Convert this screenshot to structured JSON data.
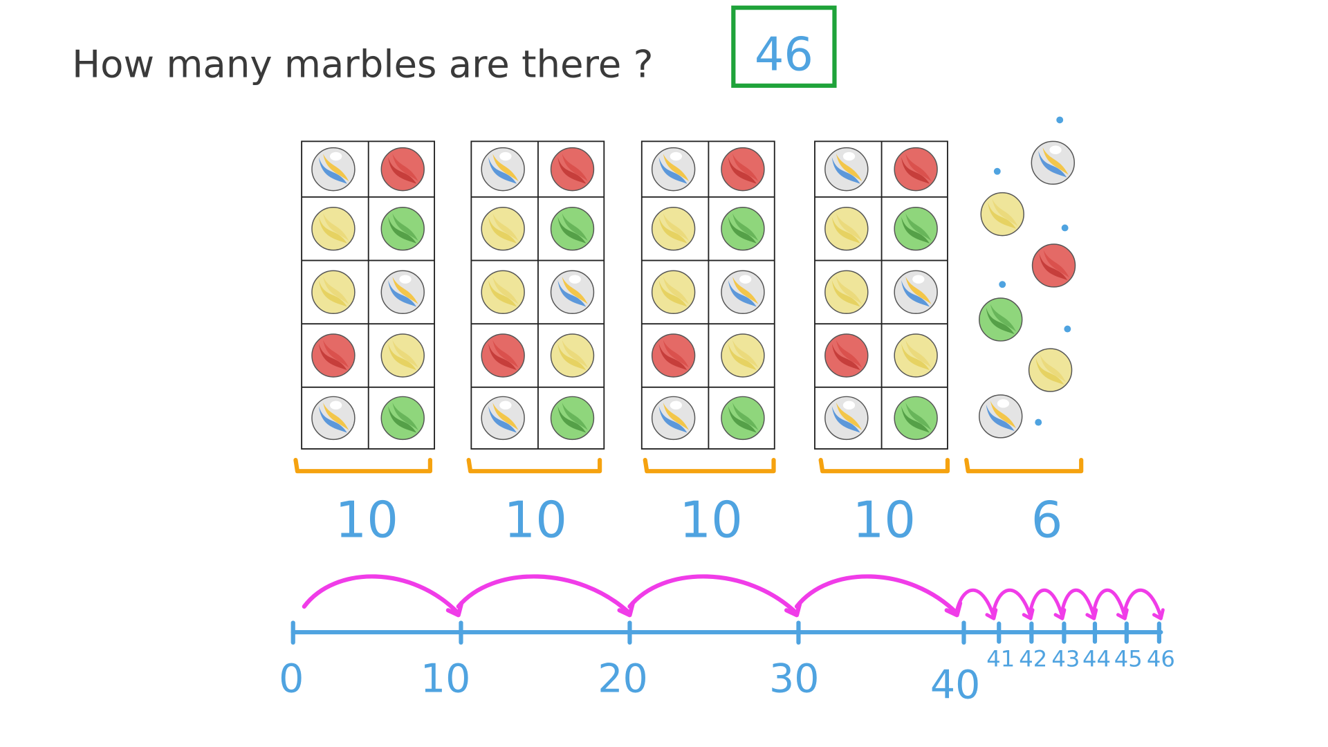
{
  "question": {
    "text": "How many marbles are there ?",
    "answer": "46"
  },
  "colors": {
    "title": "#3a3a3a",
    "answer_box": "#1fa33a",
    "blue": "#4fa3e0",
    "orange": "#f5a20f",
    "magenta": "#f03ce8",
    "grid": "#222222",
    "marbles": {
      "white": {
        "fill": "#e4e4e4",
        "swirl1": "#4d8fd8",
        "swirl2": "#f3c441"
      },
      "red": {
        "fill": "#e46a66",
        "swirl1": "#c23a36",
        "swirl2": "#d9504c"
      },
      "yellow": {
        "fill": "#efe59a",
        "swirl1": "#e4cf5c",
        "swirl2": "#ead97a"
      },
      "green": {
        "fill": "#8fd67c",
        "swirl1": "#4f9a43",
        "swirl2": "#66b358"
      }
    }
  },
  "ten_frame_pattern": [
    [
      "white",
      "red"
    ],
    [
      "yellow",
      "green"
    ],
    [
      "yellow",
      "white"
    ],
    [
      "red",
      "yellow"
    ],
    [
      "white",
      "green"
    ]
  ],
  "ten_frame_count": 4,
  "loose_marbles": [
    "white",
    "yellow",
    "red",
    "green",
    "yellow",
    "white"
  ],
  "group_labels": [
    "10",
    "10",
    "10",
    "10",
    "6"
  ],
  "number_line": {
    "major_labels": [
      "0",
      "10",
      "20",
      "30",
      "40"
    ],
    "minor_labels": [
      "41",
      "42",
      "43",
      "44",
      "45",
      "46"
    ]
  }
}
